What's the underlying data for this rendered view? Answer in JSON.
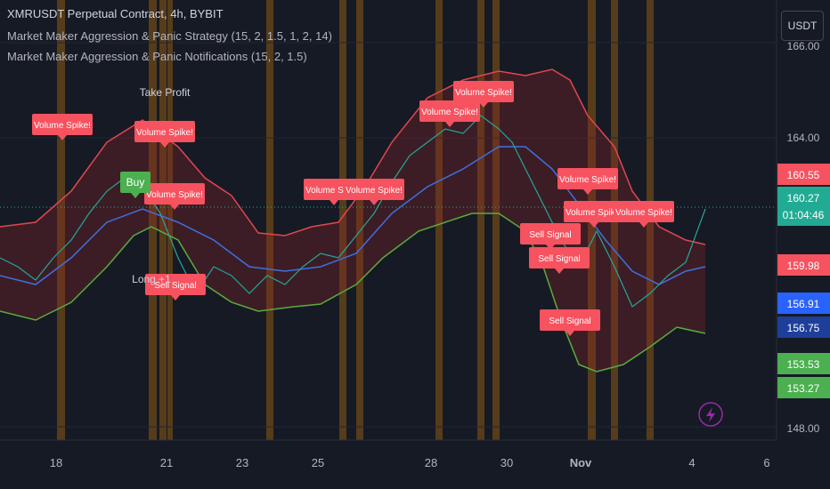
{
  "header": {
    "symbol": "XMRUSDT Perpetual Contract, 4h, BYBIT",
    "indicator1": "Market Maker Aggression & Panic Strategy (15, 2, 1.5, 1, 2, 14)",
    "indicator2": "Market Maker Aggression & Panic Notifications (15, 2, 1.5)",
    "currency": "USDT"
  },
  "price_axis": {
    "labels": [
      "166.00",
      "164.00",
      "148.00"
    ]
  },
  "price_badges": [
    {
      "text": "160.55",
      "color": "#f7525f"
    },
    {
      "text": "160.27",
      "sub": "01:04:46",
      "color": "#22ab94"
    },
    {
      "text": "159.98",
      "color": "#f7525f"
    },
    {
      "text": "156.91",
      "color": "#2962ff"
    },
    {
      "text": "156.75",
      "color": "#1e3f99"
    },
    {
      "text": "153.53",
      "color": "#4caf50"
    },
    {
      "text": "153.27",
      "color": "#4caf50"
    }
  ],
  "time_axis": {
    "labels": [
      "18",
      "21",
      "23",
      "25",
      "28",
      "30",
      "Nov",
      "4",
      "6"
    ]
  },
  "annotations": [
    {
      "text": "Volume Spike!"
    },
    {
      "text": "Volume Spike!"
    },
    {
      "text": "Volume Spike!"
    },
    {
      "text": "Volume Spike!"
    },
    {
      "text": "Volume Spike!"
    },
    {
      "text": "Volume Spike!"
    },
    {
      "text": "Volume Spike!"
    },
    {
      "text": "Volume Spike!"
    },
    {
      "text": "Volume Spike!"
    },
    {
      "text": "Volume Spike!"
    },
    {
      "text": "Sell Signal"
    },
    {
      "text": "Sell Signal"
    },
    {
      "text": "Sell Signal"
    },
    {
      "text": "Sell Signal"
    },
    {
      "text": "Buy"
    },
    {
      "text": "Take Profit"
    },
    {
      "text": "Long +1"
    }
  ]
}
